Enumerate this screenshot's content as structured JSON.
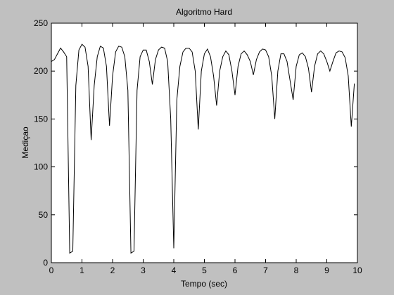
{
  "chart_data": {
    "type": "line",
    "title": "Algoritmo Hard",
    "x_label": "Tempo (sec)",
    "y_label": "Mediçao",
    "x": [
      0,
      0.1,
      0.2,
      0.3,
      0.4,
      0.5,
      0.6,
      0.7,
      0.8,
      0.9,
      1,
      1.1,
      1.2,
      1.3,
      1.4,
      1.5,
      1.6,
      1.7,
      1.8,
      1.9,
      2,
      2.1,
      2.2,
      2.3,
      2.4,
      2.5,
      2.6,
      2.7,
      2.8,
      2.9,
      3,
      3.1,
      3.2,
      3.3,
      3.4,
      3.5,
      3.6,
      3.7,
      3.8,
      3.9,
      4,
      4.1,
      4.2,
      4.3,
      4.4,
      4.5,
      4.6,
      4.7,
      4.8,
      4.9,
      5,
      5.1,
      5.2,
      5.3,
      5.4,
      5.5,
      5.6,
      5.7,
      5.8,
      5.9,
      6,
      6.1,
      6.2,
      6.3,
      6.4,
      6.5,
      6.6,
      6.7,
      6.8,
      6.9,
      7,
      7.1,
      7.2,
      7.3,
      7.4,
      7.5,
      7.6,
      7.7,
      7.8,
      7.9,
      8,
      8.1,
      8.2,
      8.3,
      8.4,
      8.5,
      8.6,
      8.7,
      8.8,
      8.9,
      9,
      9.1,
      9.2,
      9.3,
      9.4,
      9.5,
      9.6,
      9.7,
      9.8,
      9.9
    ],
    "series": [
      {
        "name": "Mediçao",
        "color": "#000000",
        "values": [
          210,
          212,
          218,
          224,
          220,
          215,
          10,
          12,
          185,
          222,
          228,
          225,
          205,
          128,
          185,
          215,
          226,
          224,
          205,
          143,
          195,
          220,
          226,
          225,
          215,
          180,
          10,
          12,
          180,
          215,
          222,
          222,
          210,
          186,
          212,
          222,
          225,
          224,
          210,
          150,
          15,
          170,
          205,
          220,
          224,
          224,
          220,
          200,
          139,
          200,
          218,
          223,
          215,
          195,
          164,
          200,
          215,
          221,
          217,
          200,
          175,
          205,
          218,
          221,
          217,
          210,
          196,
          212,
          220,
          223,
          222,
          215,
          195,
          150,
          200,
          218,
          218,
          210,
          190,
          170,
          205,
          217,
          219,
          215,
          203,
          178,
          205,
          218,
          221,
          218,
          210,
          200,
          210,
          219,
          221,
          220,
          214,
          195,
          142,
          187
        ]
      }
    ],
    "xlim": [
      0,
      10
    ],
    "xticks": [
      0,
      1,
      2,
      3,
      4,
      5,
      6,
      7,
      8,
      9,
      10
    ],
    "ylim": [
      0,
      250
    ],
    "yticks": [
      0,
      50,
      100,
      150,
      200,
      250
    ]
  }
}
